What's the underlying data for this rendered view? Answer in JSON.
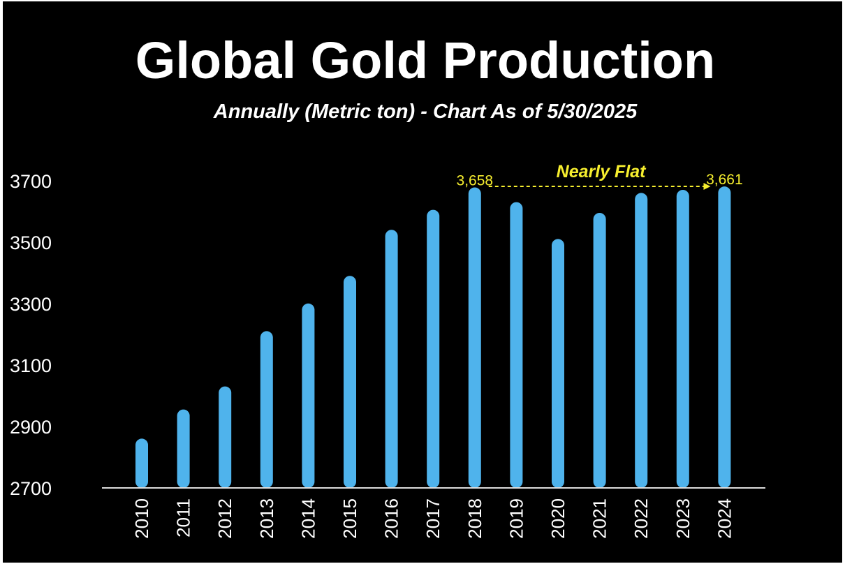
{
  "chart_data": {
    "type": "bar",
    "title": "Global Gold Production",
    "subtitle": "Annually (Metric ton) - Chart As of 5/30/2025",
    "xlabel": "",
    "ylabel": "",
    "categories": [
      "2010",
      "2011",
      "2012",
      "2013",
      "2014",
      "2015",
      "2016",
      "2017",
      "2018",
      "2019",
      "2020",
      "2021",
      "2022",
      "2023",
      "2024"
    ],
    "values": [
      2840,
      2935,
      3010,
      3190,
      3280,
      3370,
      3520,
      3585,
      3658,
      3610,
      3490,
      3575,
      3640,
      3650,
      3661
    ],
    "ylim": [
      2700,
      3700
    ],
    "yticks": [
      3700,
      3500,
      3300,
      3100,
      2900,
      2700
    ],
    "grid": false,
    "bar_color": "#4fb3ec",
    "annotation_color": "#f6ee2e",
    "data_labels": [
      {
        "category": "2018",
        "text": "3,658"
      },
      {
        "category": "2024",
        "text": "3,661"
      }
    ],
    "annotation": {
      "text": "Nearly Flat",
      "from": "2018",
      "to": "2024"
    }
  }
}
